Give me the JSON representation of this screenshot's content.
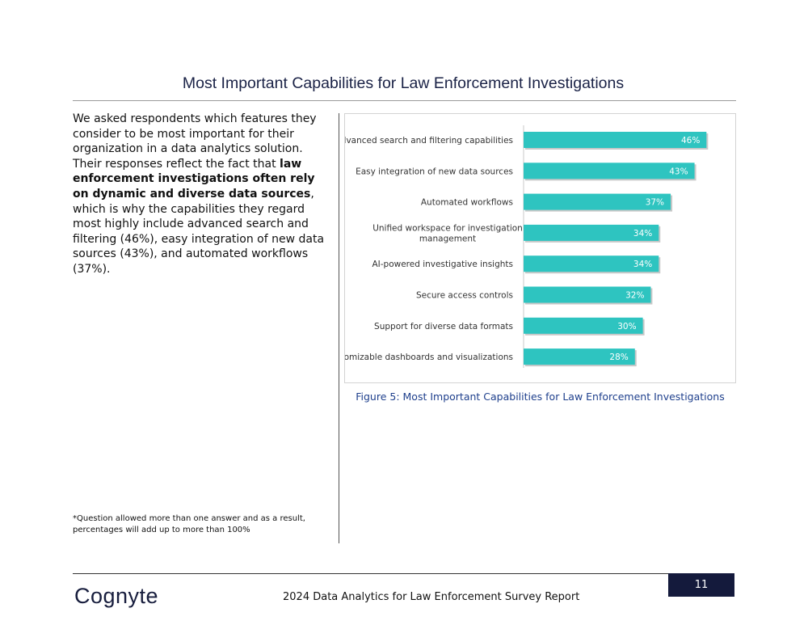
{
  "page": {
    "title": "Most Important Capabilities for Law Enforcement Investigations",
    "body_text": {
      "before_bold": "We asked respondents which features they consider to be most important for their organization in a data analytics solution. Their responses reflect the fact that ",
      "bold": "law enforcement investigations often rely on dynamic and diverse data sources",
      "after_bold": ", which is why the capabilities they regard most highly include advanced search and filtering (46%), easy integration of new data sources (43%), and automated workflows (37%)."
    },
    "footnote": "*Question allowed more than one answer and as a result, percentages will add up to more than 100%",
    "figure_caption": "Figure 5: Most Important Capabilities for Law Enforcement Investigations"
  },
  "footer": {
    "logo": "Cognyte",
    "report_title": "2024 Data Analytics for Law Enforcement Survey Report",
    "page_number": "11"
  },
  "colors": {
    "bar": "#2ec4c0",
    "title": "#1a2246",
    "caption": "#1e3f8c",
    "page_box": "#141a3c"
  },
  "chart_data": {
    "type": "bar",
    "orientation": "horizontal",
    "categories": [
      "Advanced search and filtering capabilities",
      "Easy integration of new data sources",
      "Automated workflows",
      "Unified workspace for investigation management",
      "AI-powered investigative insights",
      "Secure access controls",
      "Support for diverse data formats",
      "Customizable dashboards and visualizations"
    ],
    "values": [
      46,
      43,
      37,
      34,
      34,
      32,
      30,
      28
    ],
    "value_labels": [
      "46%",
      "43%",
      "37%",
      "34%",
      "34%",
      "32%",
      "30%",
      "28%"
    ],
    "title": "",
    "xlabel": "",
    "ylabel": "",
    "grid": false,
    "legend": "none"
  }
}
